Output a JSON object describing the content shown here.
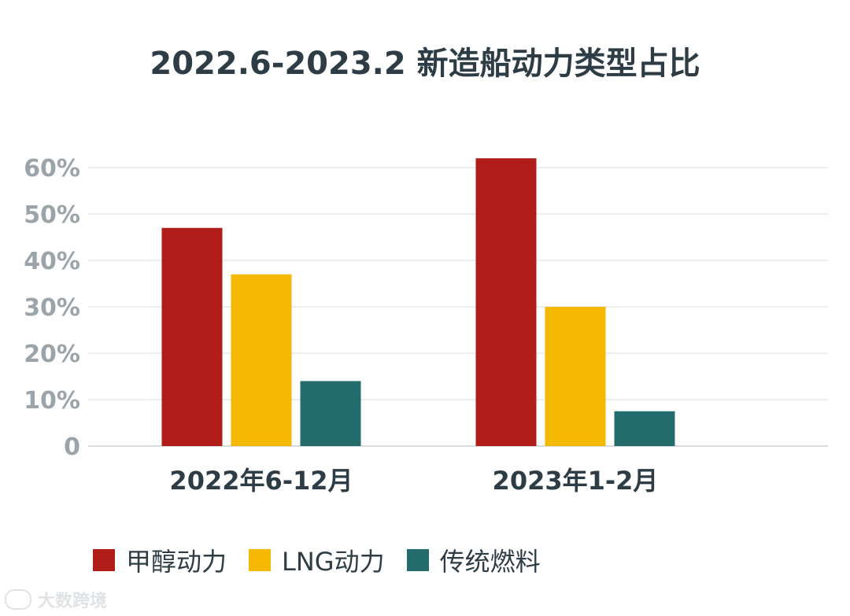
{
  "chart_data": {
    "type": "bar",
    "title": "2022.6-2023.2 新造船动力类型占比",
    "categories": [
      "2022年6-12月",
      "2023年1-2月"
    ],
    "series": [
      {
        "name": "甲醇动力",
        "color": "#b01c17",
        "values": [
          47,
          62
        ]
      },
      {
        "name": "LNG动力",
        "color": "#f5b800",
        "values": [
          37,
          30
        ]
      },
      {
        "name": "传统燃料",
        "color": "#246b6b",
        "values": [
          14,
          7.5
        ]
      }
    ],
    "y_ticks": [
      "0",
      "10%",
      "20%",
      "30%",
      "40%",
      "50%",
      "60%"
    ],
    "ylim": [
      0,
      60
    ],
    "grid": true,
    "legend_position": "bottom-left"
  },
  "watermark": {
    "text": "大数跨境"
  }
}
